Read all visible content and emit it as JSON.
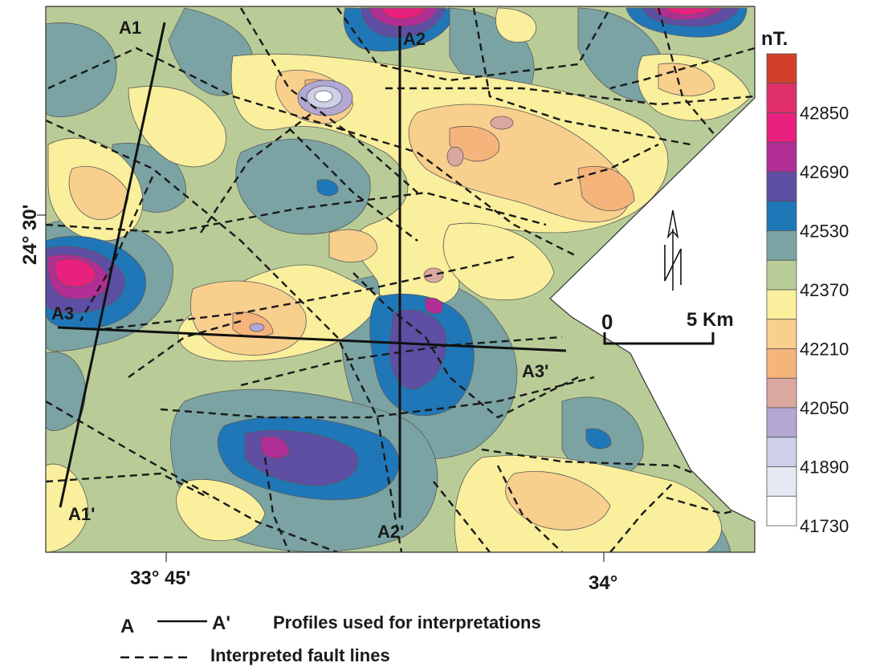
{
  "colorbar": {
    "unit": "nT.",
    "levels": [
      "42850",
      "42690",
      "42530",
      "42370",
      "42210",
      "42050",
      "41890",
      "41730"
    ],
    "colors": [
      "#d2402a",
      "#e0306a",
      "#e8207e",
      "#b02e96",
      "#5e4ea4",
      "#1f77b7",
      "#7ba3a3",
      "#b9cc98",
      "#f9ef9c",
      "#f9cf8e",
      "#f5b47c",
      "#dba8a0",
      "#b2a8d3",
      "#cdd0e8",
      "#e6e8f4",
      "#ffffff"
    ]
  },
  "axes": {
    "lat_label": "24° 30'",
    "lon_labels": [
      "33° 45'",
      "34°"
    ]
  },
  "profiles": [
    {
      "start": "A1",
      "end": "A1'"
    },
    {
      "start": "A2",
      "end": "A2'"
    },
    {
      "start": "A3",
      "end": "A3'"
    }
  ],
  "scale_bar": {
    "start": "0",
    "end": "5 Km"
  },
  "north_arrow": "N",
  "legend": {
    "profile_start": "A",
    "profile_end": "A'",
    "profile_text": "Profiles used for interpretations",
    "fault_text": "Interpreted fault lines"
  }
}
